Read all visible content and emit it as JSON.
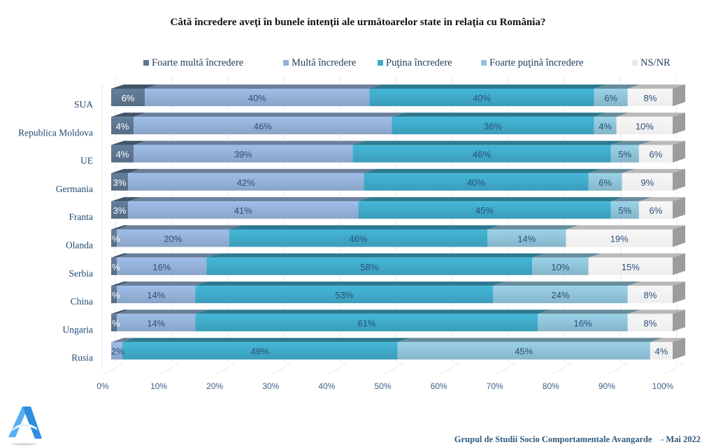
{
  "chart_data": {
    "type": "bar",
    "orientation": "horizontal",
    "stacked": "percent",
    "title": "Câtă încredere aveţi în bunele intenţii ale următoarelor state in relaţia cu România?",
    "xlabel": "",
    "ylabel": "",
    "xlim": [
      0,
      100
    ],
    "x_ticks": [
      "0%",
      "10%",
      "20%",
      "30%",
      "40%",
      "50%",
      "60%",
      "70%",
      "80%",
      "90%",
      "100%"
    ],
    "grid": true,
    "legend_position": "top",
    "categories": [
      "SUA",
      "Republica Moldova",
      "UE",
      "Germania",
      "Franta",
      "Olanda",
      "Serbia",
      "China",
      "Ungaria",
      "Rusia"
    ],
    "series": [
      {
        "name": "Foarte multă încredere",
        "color": "#5d7590",
        "values": [
          6,
          4,
          4,
          3,
          3,
          1,
          1,
          1,
          1,
          0
        ],
        "labels": [
          "6%",
          "4%",
          "4%",
          "3%",
          "3%",
          "%",
          "%",
          "%",
          "%",
          ""
        ]
      },
      {
        "name": "Multă încredere",
        "color": "#93b0d7",
        "values": [
          40,
          46,
          39,
          42,
          41,
          20,
          16,
          14,
          14,
          2
        ],
        "labels": [
          "40%",
          "46%",
          "39%",
          "42%",
          "41%",
          "20%",
          "16%",
          "14%",
          "14%",
          "2%"
        ]
      },
      {
        "name": "Puţina încredere",
        "color": "#3fa9c8",
        "values": [
          40,
          36,
          46,
          40,
          45,
          46,
          58,
          53,
          61,
          49
        ],
        "labels": [
          "40%",
          "36%",
          "46%",
          "40%",
          "45%",
          "46%",
          "58%",
          "53%",
          "61%",
          "49%"
        ]
      },
      {
        "name": "Foarte puţină încredere",
        "color": "#8fc3d8",
        "values": [
          6,
          4,
          5,
          6,
          5,
          14,
          10,
          24,
          16,
          45
        ],
        "labels": [
          "6%",
          "4%",
          "5%",
          "6%",
          "5%",
          "14%",
          "10%",
          "24%",
          "16%",
          "45%"
        ]
      },
      {
        "name": "NS/NR",
        "color": "#f2f2f2",
        "values": [
          8,
          10,
          6,
          9,
          6,
          19,
          15,
          8,
          8,
          4
        ],
        "labels": [
          "8%",
          "10%",
          "6%",
          "9%",
          "6%",
          "19%",
          "15%",
          "8%",
          "8%",
          "4%"
        ]
      }
    ]
  },
  "footer": {
    "source": "Grupul de Studii Socio Comportamentale Avangarde",
    "date": "- Mai 2022"
  },
  "logo": {
    "icon": "avangarde-a-logo-icon",
    "color": "#2e8fe0"
  }
}
